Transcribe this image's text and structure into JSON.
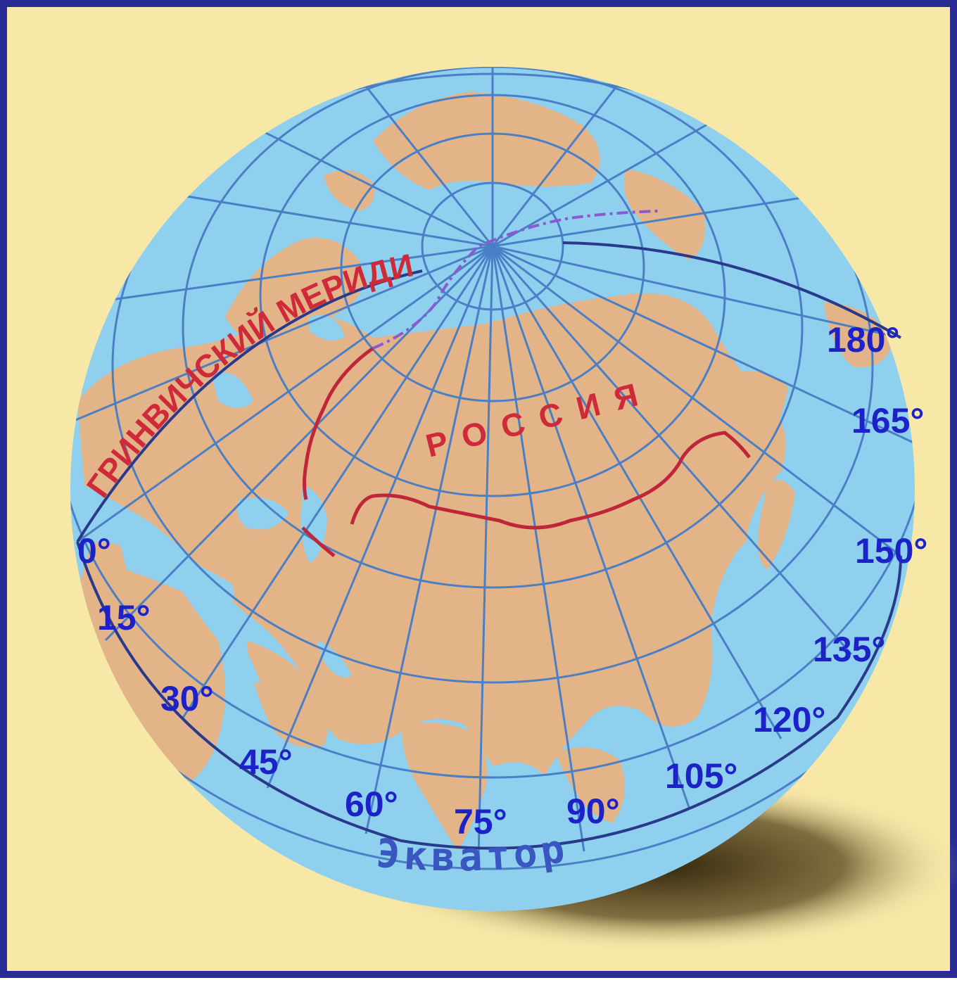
{
  "map": {
    "meridian_labels": [
      "0°",
      "15°",
      "30°",
      "45°",
      "60°",
      "75°",
      "90°",
      "105°",
      "120°",
      "135°",
      "150°",
      "165°",
      "180°"
    ],
    "greenwich_label": "ГРИНВИЧСКИЙ МЕРИДИАН",
    "russia_label": "РОССИЯ",
    "equator_label": "Экватор",
    "colors": {
      "background": "#f8e8a8",
      "frame": "#2b2b96",
      "ocean": "#8fd0ee",
      "land": "#e3b488",
      "grid": "#4a7fc6",
      "labels": "#1d22c8",
      "border": "#c0263a",
      "shadow": "#3a2a08"
    }
  }
}
